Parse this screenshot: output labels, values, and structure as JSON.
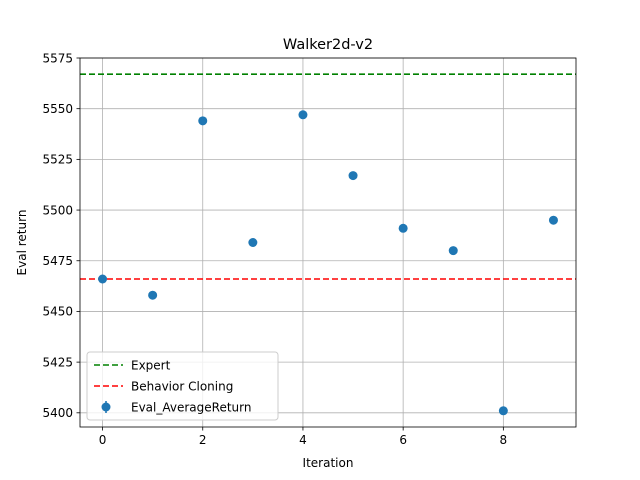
{
  "chart_data": {
    "type": "scatter",
    "title": "Walker2d-v2",
    "xlabel": "Iteration",
    "ylabel": "Eval return",
    "xlim": [
      -0.45,
      9.45
    ],
    "ylim": [
      5393,
      5575
    ],
    "xticks": [
      0,
      2,
      4,
      6,
      8
    ],
    "yticks": [
      5400,
      5425,
      5450,
      5475,
      5500,
      5525,
      5550,
      5575
    ],
    "grid": true,
    "legend_position": "lower-left",
    "series": [
      {
        "name": "Eval_AverageReturn",
        "kind": "points",
        "color": "#1f77b4",
        "x": [
          0,
          1,
          2,
          3,
          4,
          5,
          6,
          7,
          8,
          9
        ],
        "y": [
          5466,
          5458,
          5544,
          5484,
          5547,
          5517,
          5491,
          5480,
          5401,
          5495
        ]
      },
      {
        "name": "Expert",
        "kind": "hline",
        "color": "#008000",
        "y": 5567
      },
      {
        "name": "Behavior Cloning",
        "kind": "hline",
        "color": "#ff0000",
        "y": 5466
      }
    ],
    "legend": [
      "Expert",
      "Behavior Cloning",
      "Eval_AverageReturn"
    ]
  }
}
